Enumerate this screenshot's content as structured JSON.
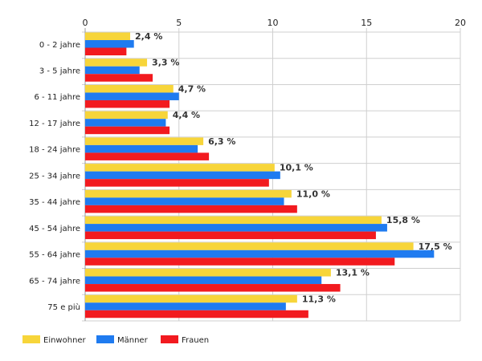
{
  "chart_data": {
    "type": "bar",
    "orientation": "horizontal",
    "categories": [
      "0 - 2 jahre",
      "3 - 5 jahre",
      "6 - 11 jahre",
      "12 - 17 jahre",
      "18 - 24 jahre",
      "25 - 34 jahre",
      "35 - 44 jahre",
      "45 - 54 jahre",
      "55 - 64 jahre",
      "65 - 74 jahre",
      "75 e più"
    ],
    "series": [
      {
        "name": "Einwohner",
        "color": "#f7d53a",
        "values": [
          2.4,
          3.3,
          4.7,
          4.4,
          6.3,
          10.1,
          11.0,
          15.8,
          17.5,
          13.1,
          11.3
        ],
        "labels": [
          "2,4 %",
          "3,3 %",
          "4,7 %",
          "4,4 %",
          "6,3 %",
          "10,1 %",
          "11,0 %",
          "15,8 %",
          "17,5 %",
          "13,1 %",
          "11,3 %"
        ]
      },
      {
        "name": "Männer",
        "color": "#1f7bf0",
        "values": [
          2.6,
          2.9,
          5.0,
          4.3,
          6.0,
          10.4,
          10.6,
          16.1,
          18.6,
          12.6,
          10.7
        ]
      },
      {
        "name": "Frauen",
        "color": "#f21a1f",
        "values": [
          2.2,
          3.6,
          4.5,
          4.5,
          6.6,
          9.8,
          11.3,
          15.5,
          16.5,
          13.6,
          11.9
        ]
      }
    ],
    "xlim": [
      0,
      20
    ],
    "xticks": [
      "0",
      "5",
      "10",
      "15",
      "20"
    ],
    "xtick_values": [
      0,
      5,
      10,
      15,
      20
    ],
    "axis_position": "top",
    "grid": true,
    "legend": "bottom-left",
    "xlabel": "",
    "ylabel": ""
  }
}
